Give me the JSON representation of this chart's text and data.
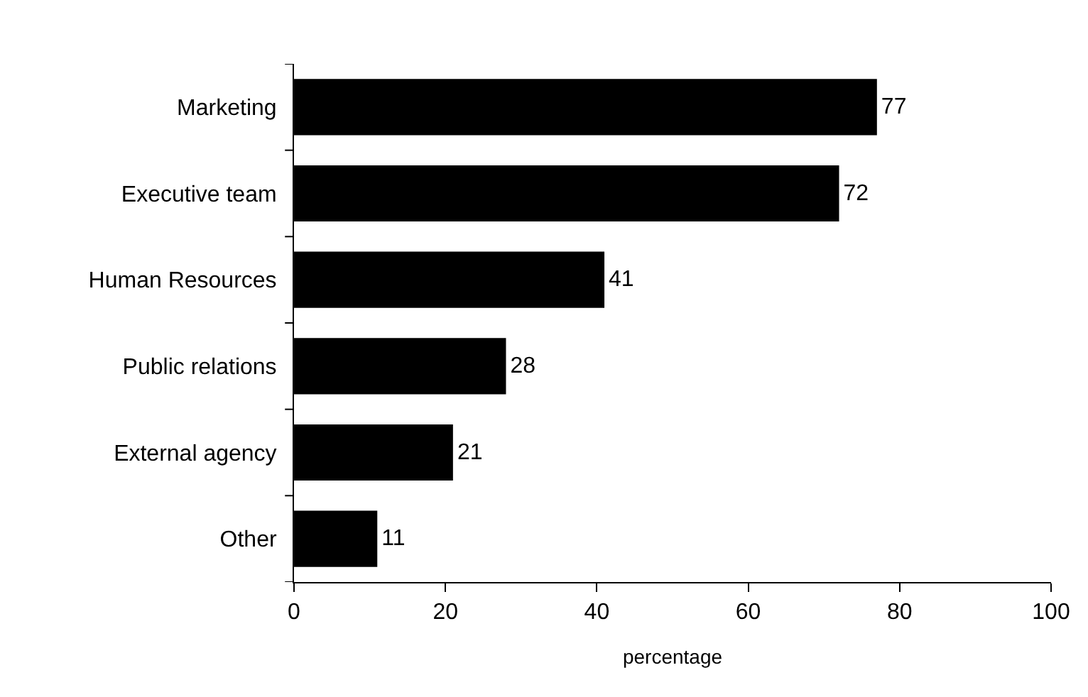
{
  "chart_data": {
    "type": "bar",
    "orientation": "horizontal",
    "categories": [
      "Marketing",
      "Executive team",
      "Human Resources",
      "Public relations",
      "External agency",
      "Other"
    ],
    "values": [
      77,
      72,
      41,
      28,
      21,
      11
    ],
    "color": "#000000",
    "xlabel": "percentage",
    "xlim": [
      0,
      100
    ],
    "xticks": [
      0,
      20,
      40,
      60,
      80,
      100
    ],
    "data_labels": true
  }
}
